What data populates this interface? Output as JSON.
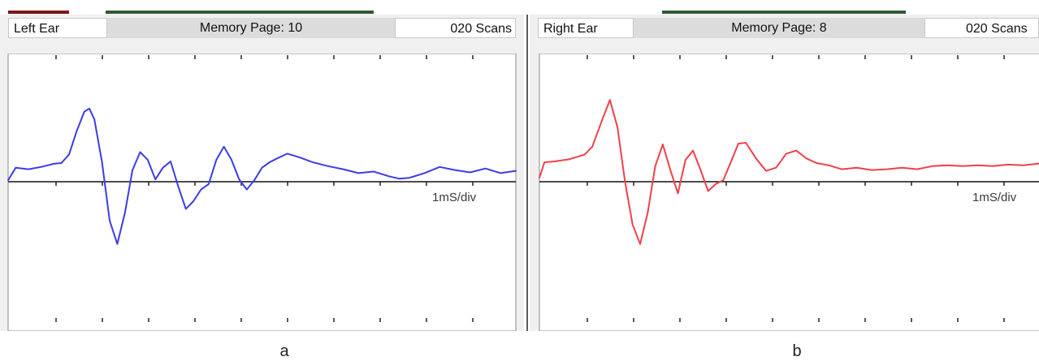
{
  "colors": {
    "left_trace": "#3c3ce6",
    "right_trace": "#f0404a",
    "baseline": "#111111",
    "top_bar_red": "#7a1418",
    "top_bar_green": "#2e5a32",
    "panel_bg": "#f0f0f0",
    "header_grey": "#dcdcdc",
    "plot_border": "#8c8c8c"
  },
  "panels": [
    {
      "caption": "a",
      "ear_label": "Left  Ear",
      "memory_page": "Memory Page:  10",
      "scans": "020 Scans",
      "scale_label": "1mS/div"
    },
    {
      "caption": "b",
      "ear_label": "Right Ear",
      "memory_page": "Memory Page:  8",
      "scans": "020 Scans",
      "scale_label": "1mS/div"
    }
  ],
  "chart_data": [
    {
      "type": "line",
      "title": "Left  Ear",
      "scale": "1mS/div",
      "xlim": [
        0,
        10
      ],
      "ylim": [
        -10,
        10
      ],
      "grid": false,
      "series": [
        {
          "color": "#3c3ce6",
          "x": [
            0,
            0.15,
            0.4,
            0.65,
            0.9,
            1.05,
            1.2,
            1.35,
            1.5,
            1.6,
            1.7,
            1.85,
            2.0,
            2.15,
            2.3,
            2.45,
            2.6,
            2.75,
            2.9,
            3.05,
            3.2,
            3.35,
            3.5,
            3.65,
            3.8,
            3.95,
            4.1,
            4.25,
            4.4,
            4.55,
            4.7,
            4.85,
            5.0,
            5.15,
            5.3,
            5.5,
            5.75,
            6.0,
            6.3,
            6.6,
            6.9,
            7.2,
            7.5,
            7.7,
            7.9,
            8.2,
            8.5,
            8.8,
            9.1,
            9.4,
            9.7,
            10.0
          ],
          "y": [
            0.2,
            1.8,
            1.6,
            1.9,
            2.3,
            2.4,
            3.5,
            6.5,
            9.0,
            9.4,
            8.0,
            2.5,
            -5.0,
            -8.0,
            -4.0,
            1.5,
            3.8,
            2.8,
            0.3,
            1.8,
            2.6,
            -0.6,
            -3.5,
            -2.5,
            -1.0,
            -0.3,
            2.8,
            4.5,
            2.8,
            0.3,
            -1.0,
            0.2,
            1.8,
            2.5,
            3.0,
            3.6,
            3.1,
            2.5,
            2.0,
            1.6,
            1.1,
            1.3,
            0.7,
            0.4,
            0.5,
            1.1,
            1.9,
            1.5,
            1.2,
            1.7,
            1.1,
            1.4
          ]
        }
      ]
    },
    {
      "type": "line",
      "title": "Right Ear",
      "scale": "1mS/div",
      "xlim": [
        0,
        10
      ],
      "ylim": [
        -10,
        10
      ],
      "grid": false,
      "series": [
        {
          "color": "#f0404a",
          "x": [
            0,
            0.1,
            0.3,
            0.6,
            0.9,
            1.05,
            1.25,
            1.4,
            1.55,
            1.7,
            1.85,
            2.0,
            2.15,
            2.3,
            2.45,
            2.6,
            2.75,
            2.9,
            3.05,
            3.2,
            3.35,
            3.5,
            3.65,
            3.8,
            3.95,
            4.1,
            4.3,
            4.5,
            4.7,
            4.9,
            5.1,
            5.3,
            5.5,
            5.75,
            6.0,
            6.3,
            6.6,
            6.9,
            7.2,
            7.5,
            7.8,
            8.1,
            8.4,
            8.7,
            9.0,
            9.3,
            9.6,
            10.0
          ],
          "y": [
            0.5,
            2.5,
            2.6,
            2.9,
            3.5,
            4.5,
            8.0,
            10.5,
            7.0,
            0.0,
            -5.5,
            -8.0,
            -4.0,
            2.0,
            4.8,
            1.5,
            -1.5,
            2.8,
            4.0,
            1.5,
            -1.2,
            -0.3,
            0.2,
            2.5,
            4.9,
            5.0,
            3.0,
            1.4,
            1.8,
            3.6,
            4.0,
            3.0,
            2.4,
            2.1,
            1.6,
            1.8,
            1.5,
            1.6,
            1.8,
            1.6,
            2.0,
            2.1,
            2.0,
            2.1,
            2.0,
            2.2,
            2.1,
            2.4
          ]
        }
      ]
    }
  ]
}
